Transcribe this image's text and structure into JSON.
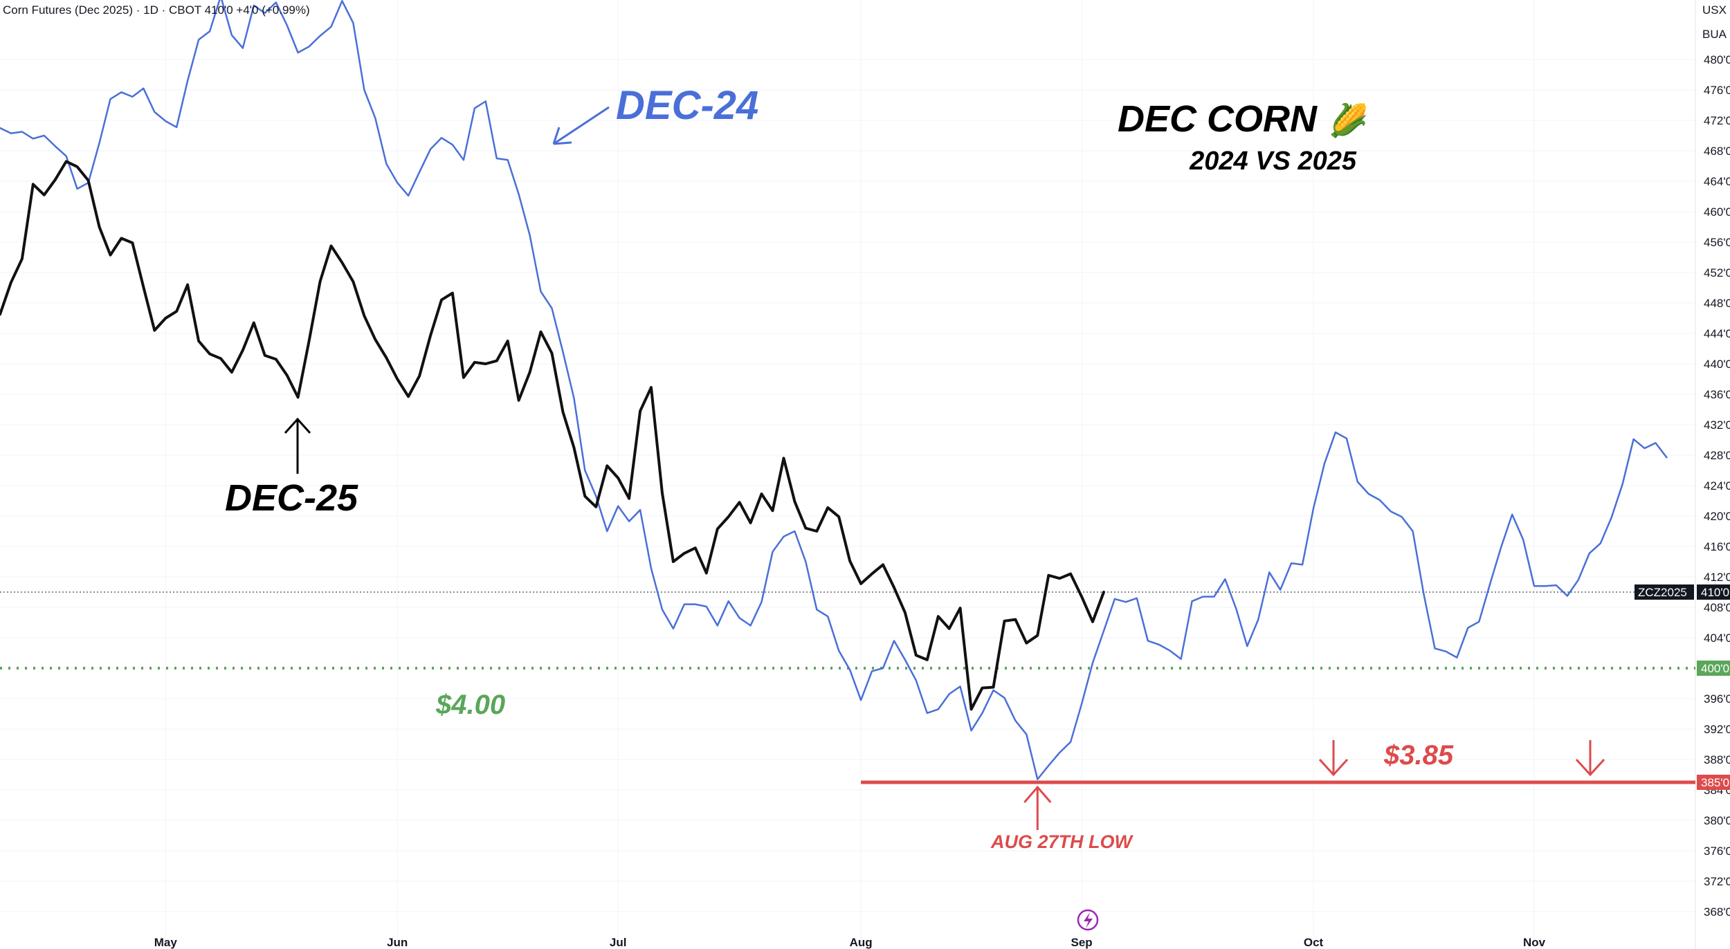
{
  "header": {
    "symbol_line": "Corn Futures (Dec 2025) · 1D · CBOT  410'0  +4'0 (+0.99%)",
    "currency": "USX",
    "unit": "BUA"
  },
  "chart_data": {
    "type": "line",
    "title": "DEC CORN",
    "subtitle": "2024 VS 2025",
    "title_emoji": "🌽",
    "x_ticks": [
      "May",
      "Jun",
      "Jul",
      "Aug",
      "Sep",
      "Oct",
      "Nov"
    ],
    "y_ticks": [
      "480'0",
      "476'0",
      "472'0",
      "468'0",
      "464'0",
      "460'0",
      "456'0",
      "452'0",
      "448'0",
      "444'0",
      "440'0",
      "436'0",
      "432'0",
      "428'0",
      "424'0",
      "420'0",
      "416'0",
      "412'0",
      "408'0",
      "404'0",
      "400'0",
      "396'0",
      "392'0",
      "388'0",
      "384'0",
      "380'0",
      "376'0",
      "372'0",
      "368'0"
    ],
    "ylim": [
      366,
      484
    ],
    "x_axis": "trading day index from Apr 10",
    "grid": true,
    "series": [
      {
        "name": "DEC-24",
        "color": "#4a6fd8",
        "points": [
          [
            0,
            471
          ],
          [
            1,
            470.3
          ],
          [
            2,
            470.5
          ],
          [
            3,
            469.6
          ],
          [
            4,
            470
          ],
          [
            5,
            468.6
          ],
          [
            6,
            467.3
          ],
          [
            7,
            463
          ],
          [
            8,
            463.8
          ],
          [
            9,
            469
          ],
          [
            10,
            474.8
          ],
          [
            11,
            475.7
          ],
          [
            12,
            475.1
          ],
          [
            13,
            476.2
          ],
          [
            14,
            473.1
          ],
          [
            15,
            471.9
          ],
          [
            16,
            471.1
          ],
          [
            17,
            477.2
          ],
          [
            18,
            482.6
          ],
          [
            19,
            483.7
          ],
          [
            20,
            488.3
          ],
          [
            21,
            483.2
          ],
          [
            22,
            481.5
          ],
          [
            23,
            487.1
          ],
          [
            24,
            486.1
          ],
          [
            25,
            487.5
          ],
          [
            26,
            484.5
          ],
          [
            27,
            480.9
          ],
          [
            28,
            481.7
          ],
          [
            29,
            483.1
          ],
          [
            30,
            484.3
          ],
          [
            31,
            487.7
          ],
          [
            32,
            484.8
          ],
          [
            33,
            476
          ],
          [
            34,
            472.3
          ],
          [
            35,
            466.3
          ],
          [
            36,
            463.8
          ],
          [
            37,
            462.1
          ],
          [
            38,
            465.2
          ],
          [
            39,
            468.2
          ],
          [
            40,
            469.7
          ],
          [
            41,
            468.8
          ],
          [
            42,
            466.8
          ],
          [
            43,
            473.6
          ],
          [
            44,
            474.5
          ],
          [
            45,
            467
          ],
          [
            46,
            466.8
          ],
          [
            47,
            462.3
          ],
          [
            48,
            456.9
          ],
          [
            49,
            449.5
          ],
          [
            50,
            447.3
          ],
          [
            51,
            441.6
          ],
          [
            52,
            435.5
          ],
          [
            53,
            426
          ],
          [
            54,
            422.6
          ],
          [
            55,
            418
          ],
          [
            56,
            421.3
          ],
          [
            57,
            419.3
          ],
          [
            58,
            420.8
          ],
          [
            59,
            413.1
          ],
          [
            60,
            407.7
          ],
          [
            61,
            405.2
          ],
          [
            62,
            408.4
          ],
          [
            63,
            408.4
          ],
          [
            64,
            408.1
          ],
          [
            65,
            405.6
          ],
          [
            66,
            408.8
          ],
          [
            67,
            406.6
          ],
          [
            68,
            405.6
          ],
          [
            69,
            408.7
          ],
          [
            70,
            415.3
          ],
          [
            71,
            417.3
          ],
          [
            72,
            418
          ],
          [
            73,
            414
          ],
          [
            74,
            407.7
          ],
          [
            75,
            406.8
          ],
          [
            76,
            402.3
          ],
          [
            77,
            399.8
          ],
          [
            78,
            395.8
          ],
          [
            79,
            399.6
          ],
          [
            80,
            400
          ],
          [
            81,
            403.6
          ],
          [
            82,
            401.1
          ],
          [
            83,
            398.4
          ],
          [
            84,
            394.1
          ],
          [
            85,
            394.6
          ],
          [
            86,
            396.6
          ],
          [
            87,
            397.6
          ],
          [
            88,
            391.8
          ],
          [
            89,
            394.1
          ],
          [
            90,
            397.1
          ],
          [
            91,
            396.1
          ],
          [
            92,
            393.1
          ],
          [
            93,
            391.3
          ],
          [
            94,
            385.4
          ],
          [
            95,
            387.2
          ],
          [
            96,
            388.9
          ],
          [
            97,
            390.3
          ],
          [
            98,
            395.3
          ],
          [
            99,
            400.7
          ],
          [
            100,
            404.9
          ],
          [
            101,
            409.1
          ],
          [
            102,
            408.7
          ],
          [
            103,
            409.2
          ],
          [
            104,
            403.6
          ],
          [
            105,
            403.1
          ],
          [
            106,
            402.3
          ],
          [
            107,
            401.2
          ],
          [
            108,
            408.8
          ],
          [
            109,
            409.4
          ],
          [
            110,
            409.4
          ],
          [
            111,
            411.7
          ],
          [
            112,
            407.8
          ],
          [
            113,
            402.9
          ],
          [
            114,
            406.4
          ],
          [
            115,
            412.6
          ],
          [
            116,
            410.3
          ],
          [
            117,
            413.8
          ],
          [
            118,
            413.6
          ],
          [
            119,
            421
          ],
          [
            120,
            426.9
          ],
          [
            121,
            431
          ],
          [
            122,
            430.2
          ],
          [
            123,
            424.5
          ],
          [
            124,
            422.9
          ],
          [
            125,
            422.1
          ],
          [
            126,
            420.6
          ],
          [
            127,
            419.9
          ],
          [
            128,
            418
          ],
          [
            129,
            409.7
          ],
          [
            130,
            402.6
          ],
          [
            131,
            402.2
          ],
          [
            132,
            401.4
          ],
          [
            133,
            405.3
          ],
          [
            134,
            406.1
          ],
          [
            135,
            411.1
          ],
          [
            136,
            415.9
          ],
          [
            137,
            420.2
          ],
          [
            138,
            416.9
          ],
          [
            139,
            410.8
          ],
          [
            140,
            410.8
          ],
          [
            141,
            410.9
          ],
          [
            142,
            409.5
          ],
          [
            143,
            411.6
          ],
          [
            144,
            415.1
          ],
          [
            145,
            416.4
          ],
          [
            146,
            419.8
          ],
          [
            147,
            424.2
          ],
          [
            148,
            430.1
          ],
          [
            149,
            428.9
          ],
          [
            150,
            429.6
          ],
          [
            151,
            427.7
          ]
        ]
      },
      {
        "name": "DEC-25",
        "color": "#111111",
        "points": [
          [
            0,
            446.5
          ],
          [
            1,
            450.7
          ],
          [
            2,
            453.8
          ],
          [
            3,
            463.6
          ],
          [
            4,
            462.2
          ],
          [
            5,
            464.2
          ],
          [
            6,
            466.6
          ],
          [
            7,
            465.9
          ],
          [
            8,
            464.1
          ],
          [
            9,
            458
          ],
          [
            10,
            454.3
          ],
          [
            11,
            456.5
          ],
          [
            12,
            455.9
          ],
          [
            13,
            450.1
          ],
          [
            14,
            444.4
          ],
          [
            15,
            446
          ],
          [
            16,
            446.9
          ],
          [
            17,
            450.4
          ],
          [
            18,
            443
          ],
          [
            19,
            441.3
          ],
          [
            20,
            440.7
          ],
          [
            21,
            438.9
          ],
          [
            22,
            441.8
          ],
          [
            23,
            445.4
          ],
          [
            24,
            441.1
          ],
          [
            25,
            440.6
          ],
          [
            26,
            438.5
          ],
          [
            27,
            435.6
          ],
          [
            28,
            443
          ],
          [
            29,
            450.8
          ],
          [
            30,
            455.5
          ],
          [
            31,
            453.3
          ],
          [
            32,
            450.8
          ],
          [
            33,
            446.3
          ],
          [
            34,
            443.2
          ],
          [
            35,
            440.8
          ],
          [
            36,
            438
          ],
          [
            37,
            435.7
          ],
          [
            38,
            438.4
          ],
          [
            39,
            443.7
          ],
          [
            40,
            448.4
          ],
          [
            41,
            449.3
          ],
          [
            42,
            438.2
          ],
          [
            43,
            440.2
          ],
          [
            44,
            440
          ],
          [
            45,
            440.4
          ],
          [
            46,
            443
          ],
          [
            47,
            435.2
          ],
          [
            48,
            438.9
          ],
          [
            49,
            444.2
          ],
          [
            50,
            441.4
          ],
          [
            51,
            433.7
          ],
          [
            52,
            429
          ],
          [
            53,
            422.6
          ],
          [
            54,
            421.2
          ],
          [
            55,
            426.6
          ],
          [
            56,
            425
          ],
          [
            57,
            422.3
          ],
          [
            58,
            433.8
          ],
          [
            59,
            436.9
          ],
          [
            60,
            423
          ],
          [
            61,
            414
          ],
          [
            62,
            415.1
          ],
          [
            63,
            415.8
          ],
          [
            64,
            412.5
          ],
          [
            65,
            418.3
          ],
          [
            66,
            419.9
          ],
          [
            67,
            421.8
          ],
          [
            68,
            419.1
          ],
          [
            69,
            422.9
          ],
          [
            70,
            420.7
          ],
          [
            71,
            427.6
          ],
          [
            72,
            421.9
          ],
          [
            73,
            418.4
          ],
          [
            74,
            418
          ],
          [
            75,
            421.1
          ],
          [
            76,
            419.9
          ],
          [
            77,
            414.1
          ],
          [
            78,
            411.1
          ],
          [
            79,
            412.4
          ],
          [
            80,
            413.6
          ],
          [
            81,
            410.6
          ],
          [
            82,
            407.3
          ],
          [
            83,
            401.7
          ],
          [
            84,
            401.1
          ],
          [
            85,
            406.8
          ],
          [
            86,
            405.2
          ],
          [
            87,
            407.9
          ],
          [
            88,
            394.6
          ],
          [
            89,
            397.4
          ],
          [
            90,
            397.5
          ],
          [
            91,
            406.2
          ],
          [
            92,
            406.4
          ],
          [
            93,
            403.3
          ],
          [
            94,
            404.3
          ],
          [
            95,
            412.2
          ],
          [
            96,
            411.8
          ],
          [
            97,
            412.4
          ],
          [
            98,
            409.4
          ],
          [
            99,
            406.1
          ],
          [
            100,
            410
          ]
        ]
      }
    ],
    "reference_lines": [
      {
        "level": 410,
        "tag": "ZCZ2025",
        "value_label": "410'0",
        "color": "#131722",
        "style": "dotted"
      },
      {
        "level": 400,
        "value_label": "400'0",
        "label": "$4.00",
        "color": "#5aa65a",
        "style": "dashed"
      },
      {
        "level": 385,
        "value_label": "385'0",
        "label": "$3.85",
        "color": "#dd4b4b",
        "style": "solid",
        "from_index": 78
      }
    ],
    "annotations": {
      "dec24_label": "DEC-24",
      "dec25_label": "DEC-25",
      "low_label": "AUG 27TH LOW",
      "low_index": 94
    }
  }
}
